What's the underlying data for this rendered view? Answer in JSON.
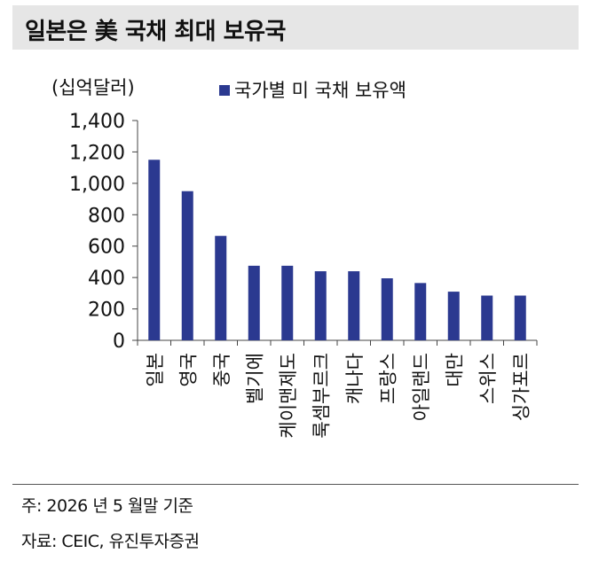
{
  "title": "일본은 美 국채 최대 보유국",
  "chart_data": {
    "type": "bar",
    "unit_label": "(십억달러)",
    "legend": "국가별 미 국채 보유액",
    "categories": [
      "일본",
      "영국",
      "중국",
      "벨기에",
      "케이맨제도",
      "룩셈부르크",
      "캐나다",
      "프랑스",
      "아일랜드",
      "대만",
      "스위스",
      "싱가포르"
    ],
    "series": [
      {
        "name": "국가별 미 국채 보유액",
        "values": [
          1150,
          950,
          665,
          475,
          475,
          440,
          440,
          395,
          365,
          310,
          285,
          285
        ]
      }
    ],
    "ylim": [
      0,
      1400
    ],
    "yticks": [
      0,
      200,
      400,
      600,
      800,
      1000,
      1200,
      1400
    ],
    "ytick_labels": [
      "0",
      "200",
      "400",
      "600",
      "800",
      "1,000",
      "1,200",
      "1,400"
    ],
    "bar_color": "#2b3990"
  },
  "footer": {
    "note": "주: 2026 년 5 월말 기준",
    "source": "자료: CEIC, 유진투자증권"
  }
}
